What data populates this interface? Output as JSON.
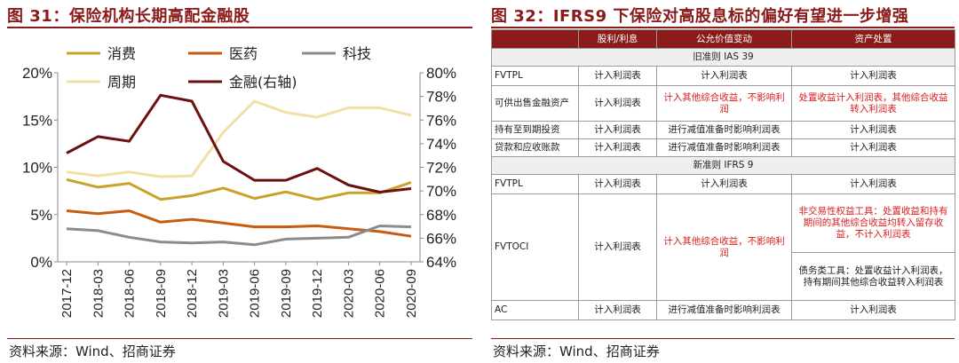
{
  "left_panel": {
    "title": "图 31：保险机构长期高配金融股",
    "source": "资料来源：Wind、招商证券"
  },
  "right_panel": {
    "title": "图 32：IFRS9 下保险对高股息标的偏好有望进一步增强",
    "source": "资料来源：Wind、招商证券",
    "table": {
      "headers": [
        "",
        "股利/利息",
        "公允价值变动",
        "资产处置"
      ],
      "section_old": "旧准则 IAS 39",
      "section_new": "新准则 IFRS 9",
      "old_rows": [
        {
          "cat": "FVTPL",
          "div": "计入利润表",
          "fv": "计入利润表",
          "disp": "计入利润表"
        },
        {
          "cat": "可供出售金融资产",
          "div": "计入利润表",
          "fv": "计入其他综合收益，不影响利润",
          "disp": "处置收益计入利润表，其他综合收益转入利润表"
        },
        {
          "cat": "持有至到期投资",
          "div": "计入利润表",
          "fv": "进行减值准备时影响利润表",
          "disp": "计入利润表"
        },
        {
          "cat": "贷款和应收账款",
          "div": "计入利润表",
          "fv": "进行减值准备时影响利润表",
          "disp": "计入利润表"
        }
      ],
      "new_rows": {
        "fvtpl": {
          "cat": "FVTPL",
          "div": "计入利润表",
          "fv": "计入利润表",
          "disp": "计入利润表"
        },
        "fvtoci": {
          "cat": "FVTOCI",
          "div": "计入利润表",
          "fv": "计入其他综合收益，不影响利润",
          "disp_equity": "非交易性权益工具：处置收益和持有期间的其他综合收益均转入留存收益，不计入利润表",
          "disp_debt": "债务类工具：处置收益计入利润表，持有期间其他综合收益转入利润表"
        },
        "ac": {
          "cat": "AC",
          "div": "计入利润表",
          "fv": "进行减值准备时影响利润表",
          "disp": "计入利润表"
        }
      }
    }
  },
  "chart_data": {
    "type": "line",
    "x": [
      "2017-12",
      "2018-03",
      "2018-06",
      "2018-09",
      "2018-12",
      "2019-03",
      "2019-06",
      "2019-09",
      "2019-12",
      "2020-03",
      "2020-06",
      "2020-09"
    ],
    "series": [
      {
        "name": "消费",
        "axis": "left",
        "color": "#c9a227",
        "values": [
          8.7,
          7.9,
          8.3,
          6.6,
          7.0,
          7.8,
          6.7,
          7.4,
          6.6,
          7.3,
          7.3,
          8.4
        ]
      },
      {
        "name": "医药",
        "axis": "left",
        "color": "#c75c10",
        "values": [
          5.4,
          5.1,
          5.4,
          4.2,
          4.5,
          4.1,
          3.7,
          3.7,
          3.8,
          3.5,
          3.2,
          2.7
        ]
      },
      {
        "name": "科技",
        "axis": "left",
        "color": "#8c8c8c",
        "values": [
          3.5,
          3.3,
          2.6,
          2.1,
          2.0,
          2.1,
          1.8,
          2.4,
          2.5,
          2.6,
          3.8,
          3.7
        ]
      },
      {
        "name": "周期",
        "axis": "left",
        "color": "#f2dfa6",
        "values": [
          9.5,
          9.1,
          9.5,
          9.0,
          9.1,
          13.7,
          17.0,
          15.8,
          15.3,
          16.3,
          16.3,
          15.5
        ]
      },
      {
        "name": "金融(右轴)",
        "axis": "right",
        "color": "#6e0f0f",
        "values": [
          73.2,
          74.6,
          74.2,
          78.1,
          77.6,
          72.5,
          70.9,
          70.9,
          71.9,
          70.5,
          69.9,
          70.2
        ]
      }
    ],
    "ylim_left": [
      0,
      20
    ],
    "ylim_right": [
      64,
      80
    ],
    "yticks_left": [
      "0%",
      "5%",
      "10%",
      "15%",
      "20%"
    ],
    "yticks_right": [
      "64%",
      "66%",
      "68%",
      "70%",
      "72%",
      "74%",
      "76%",
      "78%",
      "80%"
    ],
    "grid": false,
    "legend": "top"
  }
}
